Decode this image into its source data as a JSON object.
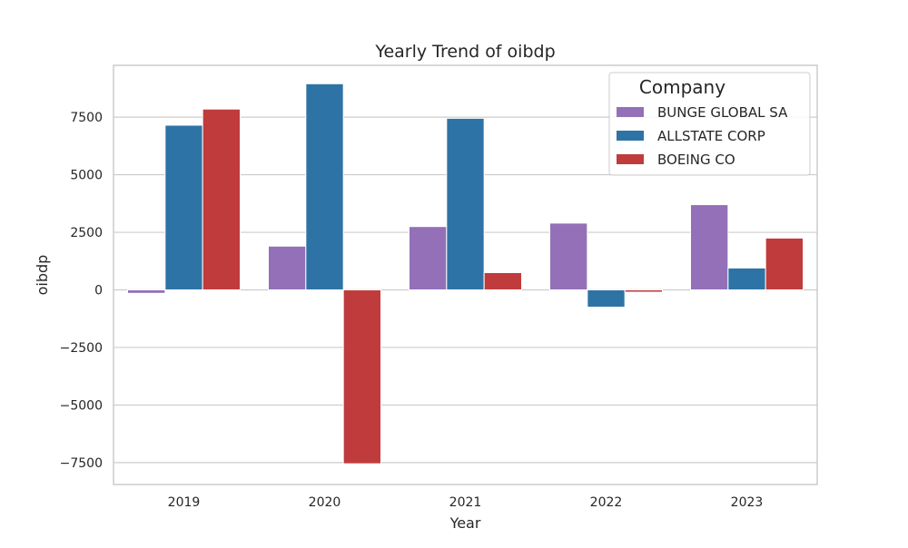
{
  "chart_data": {
    "type": "bar",
    "title": "Yearly Trend of oibdp",
    "xlabel": "Year",
    "ylabel": "oibdp",
    "categories": [
      "2019",
      "2020",
      "2021",
      "2022",
      "2023"
    ],
    "series": [
      {
        "name": "BUNGE GLOBAL SA",
        "color": "#9370b8",
        "values": [
          -150,
          1900,
          2750,
          2900,
          3700
        ]
      },
      {
        "name": "ALLSTATE CORP",
        "color": "#2e73a6",
        "values": [
          7150,
          8950,
          7450,
          -750,
          950
        ]
      },
      {
        "name": "BOEING CO",
        "color": "#c03b3c",
        "values": [
          7850,
          -7550,
          750,
          -100,
          2250
        ]
      }
    ],
    "ylim": [
      -8450,
      9750
    ],
    "yticks": [
      -7500,
      -5000,
      -2500,
      0,
      2500,
      5000,
      7500
    ],
    "ytick_labels": [
      "−7500",
      "−5000",
      "−2500",
      "0",
      "2500",
      "5000",
      "7500"
    ],
    "legend": {
      "title": "Company",
      "placement": "top-right"
    },
    "grid": true
  }
}
